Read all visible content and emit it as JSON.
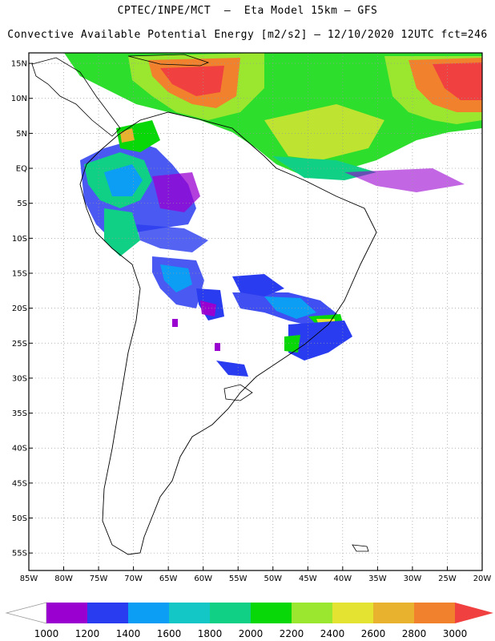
{
  "header": {
    "line1": "CPTEC/INPE/MCT  –  Eta Model 15km – GFS",
    "line2": "Convective Available Potential Energy [m2/s2] – 12/10/2020 12UTC fct=246"
  },
  "axes": {
    "lat_labels": [
      "15N",
      "10N",
      "5N",
      "EQ",
      "5S",
      "10S",
      "15S",
      "20S",
      "25S",
      "30S",
      "35S",
      "40S",
      "45S",
      "50S",
      "55S"
    ],
    "lon_labels": [
      "85W",
      "80W",
      "75W",
      "70W",
      "65W",
      "60W",
      "55W",
      "50W",
      "45W",
      "40W",
      "35W",
      "30W",
      "25W",
      "20W"
    ],
    "lat_range": [
      -57.5,
      16.5
    ],
    "lon_range": [
      -85,
      -20
    ],
    "grid": "dotted"
  },
  "colorbar": {
    "labels": [
      "1000",
      "1200",
      "1400",
      "1600",
      "1800",
      "2000",
      "2200",
      "2400",
      "2600",
      "2800",
      "3000"
    ],
    "colors": [
      "#9a00d0",
      "#2a3cf0",
      "#0c9ef4",
      "#14c7c7",
      "#10d086",
      "#08d808",
      "#9be62e",
      "#e4e332",
      "#e8b12e",
      "#f1812c"
    ],
    "over_color": "#f04040",
    "under_color": "#ffffff"
  }
}
